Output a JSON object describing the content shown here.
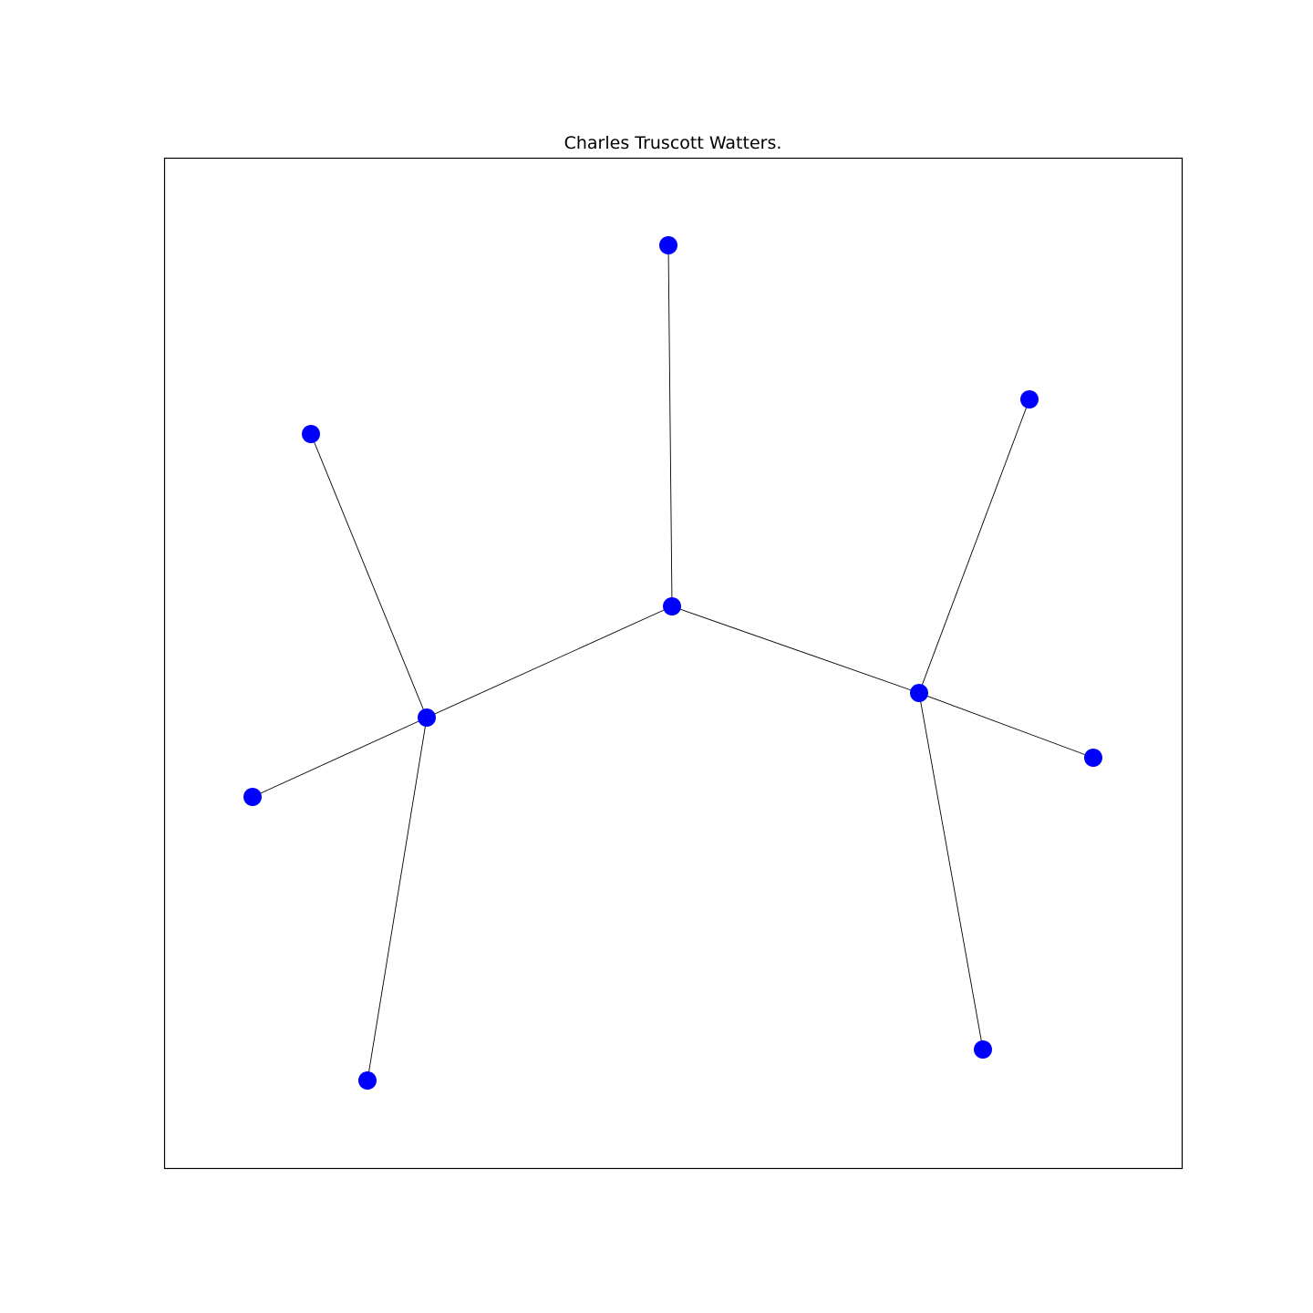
{
  "title": "Charles Truscott Watters.",
  "colors": {
    "node": "#0000ff",
    "edge": "#000000",
    "frame": "#000000",
    "background": "#ffffff"
  },
  "graph": {
    "nodes": [
      {
        "id": "center"
      },
      {
        "id": "top"
      },
      {
        "id": "left-hub"
      },
      {
        "id": "right-hub"
      },
      {
        "id": "left-upper"
      },
      {
        "id": "left-side"
      },
      {
        "id": "left-bottom"
      },
      {
        "id": "right-upper"
      },
      {
        "id": "right-side"
      },
      {
        "id": "right-bottom"
      }
    ],
    "edges": [
      [
        "center",
        "top"
      ],
      [
        "center",
        "left-hub"
      ],
      [
        "center",
        "right-hub"
      ],
      [
        "left-hub",
        "left-upper"
      ],
      [
        "left-hub",
        "left-side"
      ],
      [
        "left-hub",
        "left-bottom"
      ],
      [
        "right-hub",
        "right-upper"
      ],
      [
        "right-hub",
        "right-side"
      ],
      [
        "right-hub",
        "right-bottom"
      ]
    ]
  }
}
